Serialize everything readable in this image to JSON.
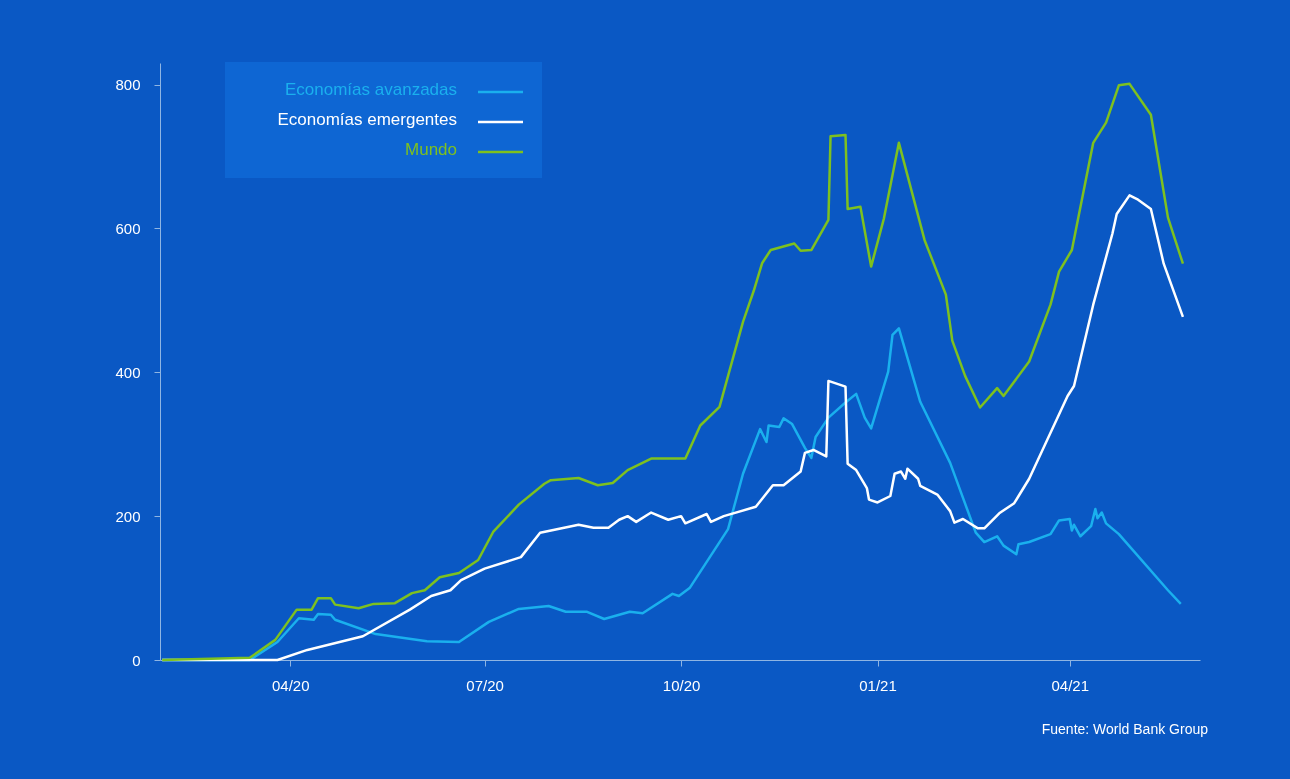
{
  "chart_data": {
    "type": "line",
    "annotations": [
      "Fuente: World Bank Group"
    ],
    "xlim": [
      "2020-01-31",
      "2021-06-01"
    ],
    "xticks": [
      {
        "value": "2020-04-01",
        "label": "04/20"
      },
      {
        "value": "2020-07-01",
        "label": "07/20"
      },
      {
        "value": "2020-10-01",
        "label": "10/20"
      },
      {
        "value": "2021-01-01",
        "label": "01/21"
      },
      {
        "value": "2021-04-01",
        "label": "04/21"
      }
    ],
    "ylim": [
      0,
      830
    ],
    "yticks": [
      0,
      200,
      400,
      600,
      800
    ],
    "grid": false,
    "legend": "top left",
    "line_style": "solid",
    "marker": "none",
    "series": [
      {
        "name": "Economías avanzadas",
        "color": "#1ab0ee",
        "x": [
          "2020-02-01",
          "2020-03-13",
          "2020-03-26",
          "2020-04-05",
          "2020-04-12",
          "2020-04-14",
          "2020-04-20",
          "2020-04-22",
          "2020-05-11",
          "2020-06-04",
          "2020-06-19",
          "2020-07-03",
          "2020-07-17",
          "2020-07-31",
          "2020-08-08",
          "2020-08-18",
          "2020-08-26",
          "2020-09-07",
          "2020-09-13",
          "2020-09-27",
          "2020-09-30",
          "2020-10-05",
          "2020-10-23",
          "2020-10-30",
          "2020-11-07",
          "2020-11-10",
          "2020-11-11",
          "2020-11-16",
          "2020-11-18",
          "2020-11-22",
          "2020-11-28",
          "2020-12-01",
          "2020-12-03",
          "2020-12-09",
          "2020-12-17",
          "2020-12-22",
          "2020-12-26",
          "2020-12-29",
          "2021-01-06",
          "2021-01-08",
          "2021-01-11",
          "2021-01-21",
          "2021-02-04",
          "2021-02-16",
          "2021-02-20",
          "2021-02-26",
          "2021-03-01",
          "2021-03-07",
          "2021-03-08",
          "2021-03-13",
          "2021-03-23",
          "2021-03-27",
          "2021-04-01",
          "2021-04-02",
          "2021-04-03",
          "2021-04-06",
          "2021-04-11",
          "2021-04-13",
          "2021-04-14",
          "2021-04-16",
          "2021-04-18",
          "2021-04-24",
          "2021-05-17",
          "2021-05-23"
        ],
        "values": [
          0,
          0,
          25,
          58,
          56,
          64,
          63,
          56,
          36,
          26,
          25,
          53,
          71,
          75,
          67,
          67,
          57,
          67,
          65,
          92,
          89,
          100,
          182,
          259,
          321,
          303,
          326,
          324,
          336,
          328,
          295,
          281,
          310,
          337,
          358,
          370,
          337,
          322,
          401,
          452,
          461,
          359,
          274,
          177,
          164,
          172,
          159,
          147,
          161,
          164,
          175,
          194,
          196,
          180,
          188,
          172,
          186,
          210,
          197,
          205,
          190,
          175,
          97,
          78
        ]
      },
      {
        "name": "Economías emergentes",
        "color": "#ffffff",
        "x": [
          "2020-02-01",
          "2020-03-26",
          "2020-04-09",
          "2020-05-05",
          "2020-05-27",
          "2020-06-06",
          "2020-06-15",
          "2020-06-20",
          "2020-07-01",
          "2020-07-18",
          "2020-07-27",
          "2020-08-14",
          "2020-08-21",
          "2020-08-28",
          "2020-09-02",
          "2020-09-06",
          "2020-09-10",
          "2020-09-17",
          "2020-09-25",
          "2020-10-01",
          "2020-10-03",
          "2020-10-13",
          "2020-10-15",
          "2020-10-21",
          "2020-11-05",
          "2020-11-13",
          "2020-11-18",
          "2020-11-26",
          "2020-11-28",
          "2020-12-02",
          "2020-12-08",
          "2020-12-09",
          "2020-12-17",
          "2020-12-18",
          "2020-12-22",
          "2020-12-27",
          "2020-12-28",
          "2021-01-01",
          "2021-01-07",
          "2021-01-09",
          "2021-01-12",
          "2021-01-14",
          "2021-01-15",
          "2021-01-20",
          "2021-01-21",
          "2021-01-29",
          "2021-02-04",
          "2021-02-06",
          "2021-02-10",
          "2021-02-17",
          "2021-02-20",
          "2021-02-27",
          "2021-03-06",
          "2021-03-13",
          "2021-03-31",
          "2021-04-03",
          "2021-04-12",
          "2021-04-21",
          "2021-04-23",
          "2021-04-29",
          "2021-05-03",
          "2021-05-09",
          "2021-05-15",
          "2021-05-24"
        ],
        "values": [
          0,
          0,
          14,
          33,
          70,
          89,
          97,
          111,
          127,
          143,
          177,
          188,
          184,
          184,
          195,
          200,
          192,
          205,
          195,
          200,
          190,
          203,
          192,
          200,
          213,
          243,
          243,
          262,
          288,
          292,
          283,
          388,
          380,
          273,
          264,
          239,
          223,
          219,
          228,
          259,
          262,
          252,
          266,
          252,
          242,
          230,
          207,
          191,
          196,
          183,
          183,
          204,
          218,
          252,
          367,
          381,
          494,
          593,
          620,
          646,
          640,
          627,
          551,
          477
        ]
      },
      {
        "name": "Mundo",
        "color": "#7ec11f",
        "x": [
          "2020-02-01",
          "2020-03-13",
          "2020-03-25",
          "2020-04-04",
          "2020-04-11",
          "2020-04-14",
          "2020-04-20",
          "2020-04-22",
          "2020-05-03",
          "2020-05-10",
          "2020-05-20",
          "2020-05-28",
          "2020-06-03",
          "2020-06-10",
          "2020-06-19",
          "2020-06-28",
          "2020-07-05",
          "2020-07-17",
          "2020-07-29",
          "2020-08-01",
          "2020-08-14",
          "2020-08-23",
          "2020-08-30",
          "2020-09-06",
          "2020-09-17",
          "2020-10-03",
          "2020-10-10",
          "2020-10-19",
          "2020-10-30",
          "2020-11-04",
          "2020-11-08",
          "2020-11-12",
          "2020-11-23",
          "2020-11-26",
          "2020-12-01",
          "2020-12-09",
          "2020-12-10",
          "2020-12-17",
          "2020-12-18",
          "2020-12-24",
          "2020-12-29",
          "2021-01-04",
          "2021-01-11",
          "2021-01-23",
          "2021-02-02",
          "2021-02-05",
          "2021-02-11",
          "2021-02-18",
          "2021-02-26",
          "2021-03-01",
          "2021-03-13",
          "2021-03-23",
          "2021-03-27",
          "2021-04-02",
          "2021-04-12",
          "2021-04-18",
          "2021-04-24",
          "2021-04-29",
          "2021-05-09",
          "2021-05-17",
          "2021-05-24"
        ],
        "values": [
          0,
          3,
          28,
          70,
          70,
          86,
          86,
          77,
          72,
          78,
          79,
          93,
          97,
          115,
          121,
          139,
          178,
          216,
          245,
          250,
          253,
          243,
          246,
          264,
          280,
          280,
          326,
          352,
          470,
          513,
          552,
          570,
          579,
          569,
          570,
          612,
          728,
          730,
          627,
          630,
          547,
          614,
          719,
          584,
          508,
          444,
          395,
          351,
          378,
          367,
          415,
          494,
          540,
          570,
          719,
          747,
          799,
          801,
          758,
          615,
          551
        ]
      }
    ]
  }
}
